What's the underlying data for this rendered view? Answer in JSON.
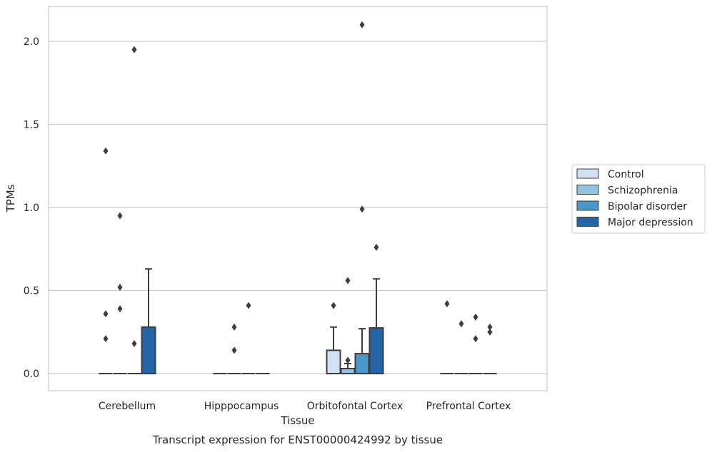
{
  "chart_data": {
    "type": "box",
    "xlabel": "Tissue",
    "ylabel": "TPMs",
    "caption": "Transcript expression for ENST00000424992 by tissue",
    "categories": [
      "Cerebellum",
      "Hipppocampus",
      "Orbitofontal Cortex",
      "Prefrontal Cortex"
    ],
    "ylim": [
      -0.1,
      2.22
    ],
    "yticks": [
      0.0,
      0.5,
      1.0,
      1.5,
      2.0
    ],
    "ytick_labels": [
      "0.0",
      "0.5",
      "1.0",
      "1.5",
      "2.0"
    ],
    "grid": true,
    "legend_position": "right",
    "series": [
      {
        "name": "Control",
        "color": "#cfe1f2",
        "boxes": [
          {
            "q1": 0,
            "median": 0,
            "q3": 0,
            "whisker_low": 0,
            "whisker_high": 0,
            "outliers": [
              0.36,
              0.21,
              1.34
            ]
          },
          {
            "q1": 0,
            "median": 0,
            "q3": 0,
            "whisker_low": 0,
            "whisker_high": 0,
            "outliers": []
          },
          {
            "q1": 0,
            "median": 0,
            "q3": 0.14,
            "whisker_low": 0,
            "whisker_high": 0.28,
            "outliers": [
              0.41
            ]
          },
          {
            "q1": 0,
            "median": 0,
            "q3": 0,
            "whisker_low": 0,
            "whisker_high": 0,
            "outliers": [
              0.42
            ]
          }
        ]
      },
      {
        "name": "Schizophrenia",
        "color": "#93c4de",
        "boxes": [
          {
            "q1": 0,
            "median": 0,
            "q3": 0,
            "whisker_low": 0,
            "whisker_high": 0,
            "outliers": [
              0.95,
              0.52,
              0.39
            ]
          },
          {
            "q1": 0,
            "median": 0,
            "q3": 0,
            "whisker_low": 0,
            "whisker_high": 0,
            "outliers": [
              0.28,
              0.14
            ]
          },
          {
            "q1": 0,
            "median": 0,
            "q3": 0.03,
            "whisker_low": 0,
            "whisker_high": 0.06,
            "outliers": [
              0.56,
              0.08
            ]
          },
          {
            "q1": 0,
            "median": 0,
            "q3": 0,
            "whisker_low": 0,
            "whisker_high": 0,
            "outliers": [
              0.3
            ]
          }
        ]
      },
      {
        "name": "Bipolar disorder",
        "color": "#4a98c9",
        "boxes": [
          {
            "q1": 0,
            "median": 0,
            "q3": 0,
            "whisker_low": 0,
            "whisker_high": 0,
            "outliers": [
              1.95,
              0.18
            ]
          },
          {
            "q1": 0,
            "median": 0,
            "q3": 0,
            "whisker_low": 0,
            "whisker_high": 0,
            "outliers": [
              0.41
            ]
          },
          {
            "q1": 0,
            "median": 0,
            "q3": 0.12,
            "whisker_low": 0,
            "whisker_high": 0.27,
            "outliers": [
              2.1,
              0.99
            ]
          },
          {
            "q1": 0,
            "median": 0,
            "q3": 0,
            "whisker_low": 0,
            "whisker_high": 0,
            "outliers": [
              0.34,
              0.21
            ]
          }
        ]
      },
      {
        "name": "Major depression",
        "color": "#2565a7",
        "boxes": [
          {
            "q1": 0,
            "median": 0,
            "q3": 0.28,
            "whisker_low": 0,
            "whisker_high": 0.63,
            "outliers": []
          },
          {
            "q1": 0,
            "median": 0,
            "q3": 0,
            "whisker_low": 0,
            "whisker_high": 0,
            "outliers": []
          },
          {
            "q1": 0,
            "median": 0,
            "q3": 0.275,
            "whisker_low": 0,
            "whisker_high": 0.57,
            "outliers": [
              0.76
            ]
          },
          {
            "q1": 0,
            "median": 0,
            "q3": 0,
            "whisker_low": 0,
            "whisker_high": 0,
            "outliers": [
              0.28,
              0.25
            ]
          }
        ]
      }
    ]
  }
}
